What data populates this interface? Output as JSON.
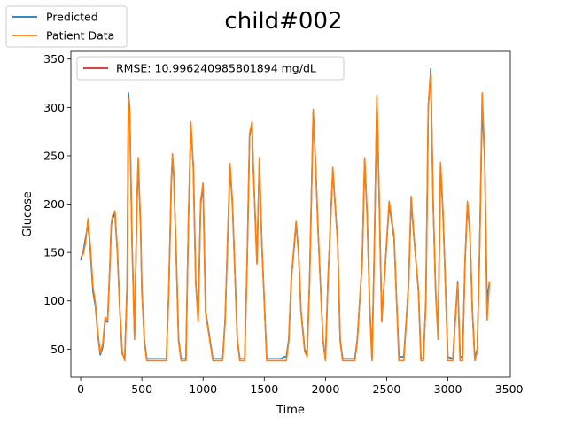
{
  "chart_data": {
    "type": "line",
    "title": "child#002",
    "xlabel": "Time",
    "ylabel": "Glucose",
    "xlim": [
      -80,
      3510
    ],
    "ylim": [
      21,
      358
    ],
    "xticks": [
      0,
      500,
      1000,
      1500,
      2000,
      2500,
      3000,
      3500
    ],
    "yticks": [
      50,
      100,
      150,
      200,
      250,
      300,
      350
    ],
    "grid": false,
    "legend_main": {
      "placement": "upper-left outside axes",
      "entries": [
        "Predicted",
        "Patient Data"
      ]
    },
    "legend_rmse": {
      "placement": "upper-left",
      "entry": "RMSE: 10.996240985801894 mg/dL",
      "color": "#d62728"
    },
    "series": [
      {
        "name": "Predicted",
        "color": "#1f77b4",
        "x": [
          0,
          20,
          40,
          60,
          80,
          100,
          120,
          140,
          160,
          180,
          200,
          220,
          240,
          250,
          260,
          280,
          300,
          320,
          340,
          360,
          380,
          390,
          400,
          420,
          440,
          460,
          470,
          490,
          500,
          520,
          540,
          560,
          580,
          600,
          650,
          700,
          720,
          740,
          750,
          760,
          780,
          800,
          820,
          860,
          880,
          900,
          920,
          940,
          960,
          980,
          1000,
          1020,
          1080,
          1100,
          1160,
          1180,
          1200,
          1220,
          1240,
          1260,
          1280,
          1300,
          1320,
          1340,
          1360,
          1380,
          1400,
          1410,
          1440,
          1460,
          1480,
          1520,
          1560,
          1580,
          1600,
          1620,
          1640,
          1660,
          1680,
          1700,
          1720,
          1760,
          1780,
          1800,
          1830,
          1850,
          1870,
          1900,
          1920,
          1940,
          1980,
          2000,
          2020,
          2060,
          2100,
          2120,
          2140,
          2160,
          2180,
          2200,
          2220,
          2240,
          2260,
          2300,
          2320,
          2340,
          2360,
          2380,
          2400,
          2420,
          2440,
          2460,
          2520,
          2560,
          2600,
          2620,
          2640,
          2660,
          2680,
          2700,
          2720,
          2760,
          2780,
          2800,
          2820,
          2840,
          2860,
          2880,
          2900,
          2920,
          2940,
          2960,
          3000,
          3040,
          3080,
          3100,
          3120,
          3140,
          3160,
          3180,
          3200,
          3220,
          3240,
          3260,
          3280,
          3300,
          3320,
          3340
        ],
        "y": [
          142,
          150,
          165,
          180,
          150,
          110,
          95,
          65,
          44,
          52,
          80,
          78,
          140,
          178,
          185,
          190,
          150,
          90,
          45,
          40,
          120,
          315,
          300,
          160,
          62,
          200,
          243,
          175,
          110,
          60,
          40,
          40,
          40,
          40,
          40,
          40,
          110,
          220,
          248,
          230,
          150,
          60,
          40,
          40,
          180,
          282,
          240,
          120,
          80,
          200,
          220,
          90,
          40,
          40,
          40,
          80,
          160,
          238,
          200,
          130,
          60,
          40,
          40,
          40,
          140,
          270,
          283,
          240,
          140,
          245,
          160,
          40,
          40,
          40,
          40,
          40,
          40,
          42,
          42,
          60,
          120,
          180,
          150,
          90,
          50,
          45,
          120,
          295,
          240,
          170,
          60,
          40,
          120,
          235,
          160,
          60,
          40,
          40,
          40,
          40,
          40,
          40,
          60,
          140,
          245,
          190,
          100,
          40,
          160,
          310,
          200,
          80,
          200,
          165,
          42,
          42,
          42,
          80,
          120,
          205,
          170,
          110,
          40,
          40,
          100,
          300,
          340,
          200,
          110,
          63,
          240,
          190,
          42,
          40,
          120,
          42,
          42,
          140,
          200,
          170,
          90,
          40,
          50,
          160,
          300,
          250,
          100,
          120
        ]
      },
      {
        "name": "Patient Data",
        "color": "#ff7f0e",
        "x": [
          0,
          20,
          40,
          60,
          80,
          100,
          120,
          140,
          160,
          180,
          200,
          220,
          240,
          250,
          260,
          280,
          300,
          320,
          340,
          360,
          380,
          390,
          400,
          420,
          440,
          460,
          470,
          490,
          500,
          520,
          540,
          560,
          580,
          600,
          650,
          700,
          720,
          740,
          750,
          760,
          780,
          800,
          820,
          860,
          880,
          900,
          920,
          940,
          960,
          980,
          1000,
          1020,
          1080,
          1100,
          1160,
          1180,
          1200,
          1220,
          1240,
          1260,
          1280,
          1300,
          1320,
          1340,
          1360,
          1380,
          1400,
          1410,
          1440,
          1460,
          1480,
          1520,
          1560,
          1580,
          1600,
          1620,
          1640,
          1660,
          1680,
          1700,
          1720,
          1760,
          1780,
          1800,
          1830,
          1850,
          1870,
          1900,
          1920,
          1940,
          1980,
          2000,
          2020,
          2060,
          2100,
          2120,
          2140,
          2160,
          2180,
          2200,
          2220,
          2240,
          2260,
          2300,
          2320,
          2340,
          2360,
          2380,
          2400,
          2420,
          2440,
          2460,
          2520,
          2560,
          2600,
          2620,
          2640,
          2660,
          2680,
          2700,
          2720,
          2760,
          2780,
          2800,
          2820,
          2840,
          2860,
          2880,
          2900,
          2920,
          2940,
          2960,
          3000,
          3040,
          3080,
          3100,
          3120,
          3140,
          3160,
          3180,
          3200,
          3220,
          3240,
          3260,
          3280,
          3300,
          3320,
          3340
        ],
        "y": [
          145,
          148,
          160,
          185,
          155,
          115,
          98,
          68,
          46,
          55,
          83,
          80,
          142,
          180,
          188,
          193,
          152,
          92,
          47,
          38,
          115,
          310,
          295,
          158,
          60,
          205,
          248,
          178,
          112,
          58,
          38,
          38,
          38,
          38,
          38,
          38,
          112,
          225,
          252,
          233,
          148,
          58,
          38,
          38,
          182,
          285,
          238,
          118,
          78,
          203,
          222,
          88,
          38,
          38,
          38,
          78,
          162,
          242,
          203,
          128,
          58,
          38,
          38,
          38,
          143,
          273,
          285,
          238,
          138,
          248,
          158,
          38,
          38,
          38,
          38,
          38,
          38,
          38,
          38,
          58,
          122,
          182,
          152,
          88,
          48,
          42,
          118,
          298,
          238,
          172,
          58,
          38,
          118,
          238,
          158,
          58,
          38,
          38,
          38,
          38,
          38,
          38,
          58,
          142,
          248,
          192,
          98,
          38,
          158,
          313,
          198,
          78,
          203,
          168,
          38,
          38,
          38,
          78,
          118,
          208,
          172,
          108,
          38,
          38,
          98,
          303,
          335,
          198,
          108,
          60,
          243,
          192,
          38,
          38,
          118,
          38,
          38,
          142,
          203,
          172,
          88,
          38,
          48,
          158,
          315,
          252,
          80,
          120
        ]
      }
    ]
  }
}
